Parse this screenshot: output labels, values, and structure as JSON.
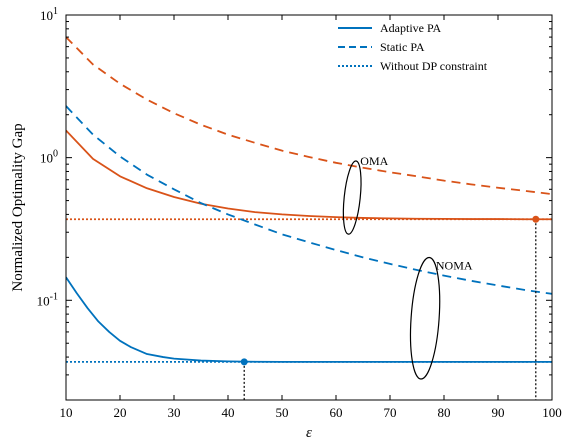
{
  "chart_data": {
    "type": "line",
    "xlabel": "ε",
    "ylabel": "Normalized Optimality Gap",
    "xlim": [
      10,
      100
    ],
    "ylim": [
      0.02,
      10
    ],
    "yscale": "log",
    "grid": false,
    "legend_position": "top-right",
    "x_ticks": [
      "10",
      "20",
      "30",
      "40",
      "50",
      "60",
      "70",
      "80",
      "90",
      "100"
    ],
    "y_ticks": [
      {
        "value": 10,
        "base": "10",
        "exp": "1"
      },
      {
        "value": 1,
        "base": "10",
        "exp": "0"
      },
      {
        "value": 0.1,
        "base": "10",
        "exp": "-1"
      }
    ],
    "legend": [
      {
        "label": "Adaptive PA",
        "style": "solid"
      },
      {
        "label": "Static PA",
        "style": "dashed"
      },
      {
        "label": "Without DP constraint",
        "style": "dotted"
      }
    ],
    "colors": {
      "oma": "#d95319",
      "noma": "#0072bd"
    },
    "series": [
      {
        "group": "OMA",
        "style": "solid",
        "color": "#d95319",
        "x": [
          10,
          15,
          20,
          25,
          30,
          35,
          40,
          45,
          50,
          55,
          60,
          65,
          70,
          75,
          80,
          85,
          90,
          95,
          100
        ],
        "y": [
          1.55,
          0.98,
          0.74,
          0.61,
          0.53,
          0.475,
          0.44,
          0.415,
          0.4,
          0.39,
          0.383,
          0.378,
          0.375,
          0.373,
          0.372,
          0.371,
          0.371,
          0.37,
          0.37
        ]
      },
      {
        "group": "OMA",
        "style": "dashed",
        "color": "#d95319",
        "x": [
          10,
          15,
          20,
          25,
          30,
          35,
          40,
          45,
          50,
          55,
          60,
          65,
          70,
          75,
          80,
          85,
          90,
          95,
          100
        ],
        "y": [
          7.0,
          4.5,
          3.3,
          2.55,
          2.05,
          1.7,
          1.45,
          1.27,
          1.12,
          1.01,
          0.92,
          0.85,
          0.79,
          0.74,
          0.69,
          0.65,
          0.615,
          0.585,
          0.555
        ]
      },
      {
        "group": "OMA",
        "style": "dotted",
        "color": "#d95319",
        "x": [
          10,
          100
        ],
        "y": [
          0.37,
          0.37
        ]
      },
      {
        "group": "NOMA",
        "style": "solid",
        "color": "#0072bd",
        "x": [
          10,
          12,
          14,
          16,
          18,
          20,
          22,
          25,
          28,
          30,
          35,
          40,
          45,
          50,
          60,
          70,
          80,
          90,
          100
        ],
        "y": [
          0.145,
          0.112,
          0.088,
          0.071,
          0.06,
          0.052,
          0.047,
          0.042,
          0.04,
          0.039,
          0.0378,
          0.0373,
          0.0371,
          0.037,
          0.037,
          0.037,
          0.037,
          0.037,
          0.037
        ]
      },
      {
        "group": "NOMA",
        "style": "dashed",
        "color": "#0072bd",
        "x": [
          10,
          15,
          20,
          25,
          30,
          35,
          40,
          45,
          50,
          55,
          60,
          65,
          70,
          75,
          80,
          85,
          90,
          95,
          100
        ],
        "y": [
          2.3,
          1.45,
          1.02,
          0.76,
          0.6,
          0.48,
          0.4,
          0.34,
          0.29,
          0.255,
          0.225,
          0.2,
          0.18,
          0.163,
          0.149,
          0.137,
          0.127,
          0.118,
          0.111
        ]
      },
      {
        "group": "NOMA",
        "style": "dotted",
        "color": "#0072bd",
        "x": [
          10,
          100
        ],
        "y": [
          0.037,
          0.037
        ]
      }
    ],
    "markers": [
      {
        "x": 97,
        "y": 0.37,
        "color": "#d95319"
      },
      {
        "x": 43,
        "y": 0.037,
        "color": "#0072bd"
      }
    ],
    "annotations": [
      {
        "text": "OMA",
        "x": 64.5,
        "y": 0.95
      },
      {
        "text": "NOMA",
        "x": 78.5,
        "y": 0.175
      }
    ]
  }
}
